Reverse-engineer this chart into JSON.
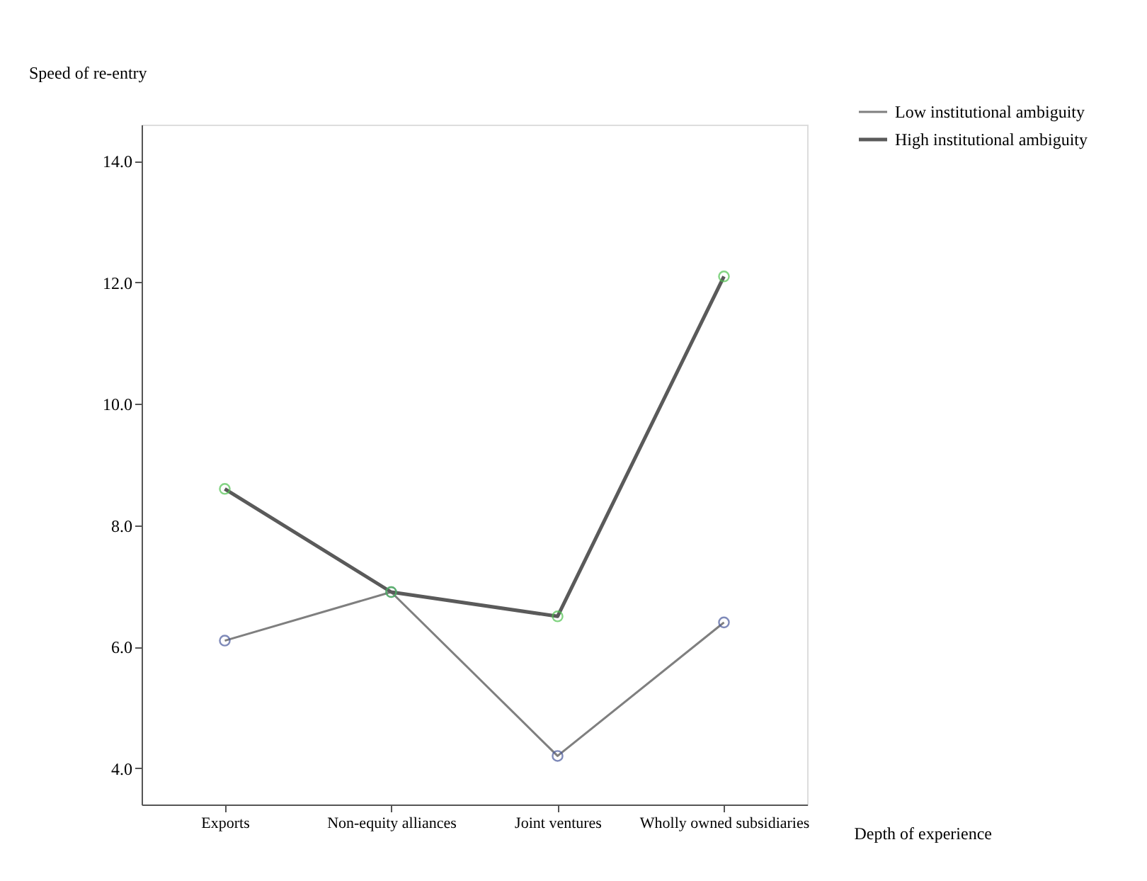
{
  "chart_data": {
    "type": "line",
    "xlabel": "Depth of experience",
    "ylabel": "Speed of re-entry",
    "categories": [
      "Exports",
      "Non-equity alliances",
      "Joint ventures",
      "Wholly owned subsidiaries"
    ],
    "series": [
      {
        "name": "Low institutional ambiguity",
        "color": "#7f7f7f",
        "colors": [
          "#4a5a9c",
          "#4a5a9c",
          "#4a5a9c",
          "#4a5a9c"
        ],
        "values": [
          6.1,
          6.9,
          4.2,
          6.4
        ]
      },
      {
        "name": "High institutional ambiguity",
        "color": "#5a5a5a",
        "colors": [
          "#4fc24f",
          "#4fc24f",
          "#4fc24f",
          "#4fc24f"
        ],
        "values": [
          8.6,
          6.9,
          6.5,
          12.1
        ]
      }
    ],
    "ylim": [
      3.4,
      14.6
    ],
    "yticks": [
      {
        "value": 4,
        "label": "4.0"
      },
      {
        "value": 6,
        "label": "6.0"
      },
      {
        "value": 8,
        "label": "8.0"
      },
      {
        "value": 10,
        "label": "10.0"
      },
      {
        "value": 12,
        "label": "12.0"
      },
      {
        "value": 14,
        "label": "14.0"
      }
    ],
    "marker": "circle",
    "legend": "top right",
    "grid": false
  }
}
